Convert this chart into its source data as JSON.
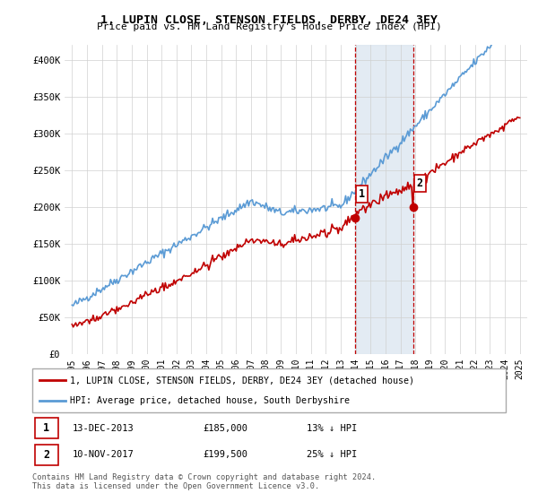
{
  "title": "1, LUPIN CLOSE, STENSON FIELDS, DERBY, DE24 3EY",
  "subtitle": "Price paid vs. HM Land Registry's House Price Index (HPI)",
  "legend_line1": "1, LUPIN CLOSE, STENSON FIELDS, DERBY, DE24 3EY (detached house)",
  "legend_line2": "HPI: Average price, detached house, South Derbyshire",
  "sale1_label": "1",
  "sale1_date": "13-DEC-2013",
  "sale1_price": "£185,000",
  "sale1_hpi": "13% ↓ HPI",
  "sale2_label": "2",
  "sale2_date": "10-NOV-2017",
  "sale2_price": "£199,500",
  "sale2_hpi": "25% ↓ HPI",
  "footer": "Contains HM Land Registry data © Crown copyright and database right 2024.\nThis data is licensed under the Open Government Licence v3.0.",
  "hpi_color": "#5b9bd5",
  "price_color": "#c00000",
  "sale1_x": 2013.95,
  "sale2_x": 2017.85,
  "shade_x1": 2013.95,
  "shade_x2": 2017.85,
  "ylim_min": 0,
  "ylim_max": 420000,
  "xlim_min": 1994.5,
  "xlim_max": 2025.5,
  "yticks": [
    0,
    50000,
    100000,
    150000,
    200000,
    250000,
    300000,
    350000,
    400000
  ],
  "ytick_labels": [
    "£0",
    "£50K",
    "£100K",
    "£150K",
    "£200K",
    "£250K",
    "£300K",
    "£350K",
    "£400K"
  ],
  "xticks": [
    1995,
    1996,
    1997,
    1998,
    1999,
    2000,
    2001,
    2002,
    2003,
    2004,
    2005,
    2006,
    2007,
    2008,
    2009,
    2010,
    2011,
    2012,
    2013,
    2014,
    2015,
    2016,
    2017,
    2018,
    2019,
    2020,
    2021,
    2022,
    2023,
    2024,
    2025
  ],
  "sale1_y": 185000,
  "sale2_y": 199500
}
